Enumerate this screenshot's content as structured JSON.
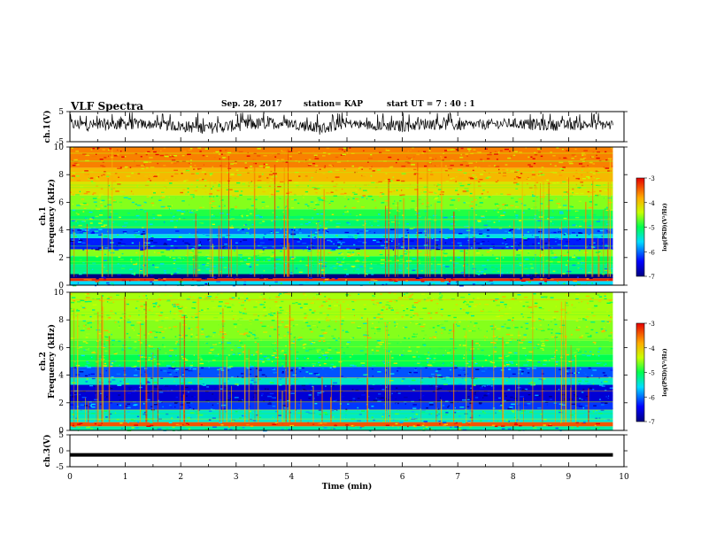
{
  "header": {
    "title": "VLF Spectra",
    "date": "Sep. 28, 2017",
    "station": "station= KAP",
    "start": "start  UT  =   7 : 40 : 1"
  },
  "chart_data": [
    {
      "type": "line",
      "name": "ch1-waveform",
      "ylabel": "ch.1(V)",
      "ylim": [
        -5,
        5
      ],
      "yticks": [
        "5",
        "-5"
      ],
      "xlim": [
        0,
        10
      ],
      "x_extent": 9.8,
      "envelope": [
        {
          "x": 0.0,
          "lo": -1.2,
          "hi": 2.8
        },
        {
          "x": 0.5,
          "lo": -1.5,
          "hi": 2.5
        },
        {
          "x": 1.0,
          "lo": -1.0,
          "hi": 3.0
        },
        {
          "x": 1.5,
          "lo": -0.8,
          "hi": 2.2
        },
        {
          "x": 2.0,
          "lo": -1.8,
          "hi": 2.0
        },
        {
          "x": 2.5,
          "lo": -2.5,
          "hi": 1.6
        },
        {
          "x": 3.0,
          "lo": -1.6,
          "hi": 2.4
        },
        {
          "x": 3.5,
          "lo": -1.0,
          "hi": 3.2
        },
        {
          "x": 4.0,
          "lo": -0.6,
          "hi": 2.8
        },
        {
          "x": 4.5,
          "lo": -2.8,
          "hi": 1.4
        },
        {
          "x": 5.0,
          "lo": -0.5,
          "hi": 2.6
        },
        {
          "x": 5.5,
          "lo": -1.2,
          "hi": 2.0
        },
        {
          "x": 6.0,
          "lo": -1.9,
          "hi": 2.2
        },
        {
          "x": 6.5,
          "lo": -0.9,
          "hi": 3.0
        },
        {
          "x": 7.0,
          "lo": -1.4,
          "hi": 2.1
        },
        {
          "x": 7.5,
          "lo": -1.0,
          "hi": 2.4
        },
        {
          "x": 8.0,
          "lo": -0.6,
          "hi": 2.8
        },
        {
          "x": 8.5,
          "lo": -1.5,
          "hi": 2.6
        },
        {
          "x": 9.0,
          "lo": -1.2,
          "hi": 2.2
        },
        {
          "x": 9.5,
          "lo": -1.0,
          "hi": 2.5
        },
        {
          "x": 9.8,
          "lo": -1.3,
          "hi": 2.3
        }
      ]
    },
    {
      "type": "heatmap",
      "name": "ch1-spectrogram",
      "ylabel": "ch.1\nFrequency (kHz)",
      "ylim": [
        0,
        10
      ],
      "yticks": [
        "0",
        "2",
        "4",
        "6",
        "8",
        "10"
      ],
      "xlim": [
        0,
        10
      ],
      "x_extent": 9.8,
      "colorbar": {
        "label": "log(PSD)(V²/Hz)",
        "range": [
          -7,
          -3
        ],
        "ticks": [
          "-3",
          "-4",
          "-5",
          "-6",
          "-7"
        ]
      },
      "bands": [
        {
          "f0": 0.0,
          "f1": 0.3,
          "level": -5.6
        },
        {
          "f0": 0.3,
          "f1": 0.5,
          "level": -3.2
        },
        {
          "f0": 0.5,
          "f1": 0.8,
          "level": -7.0
        },
        {
          "f0": 0.8,
          "f1": 1.5,
          "level": -5.2
        },
        {
          "f0": 1.5,
          "f1": 2.1,
          "level": -5.0
        },
        {
          "f0": 2.1,
          "f1": 2.6,
          "level": -4.6
        },
        {
          "f0": 2.6,
          "f1": 3.4,
          "level": -6.3
        },
        {
          "f0": 3.4,
          "f1": 3.7,
          "level": -5.5
        },
        {
          "f0": 3.7,
          "f1": 4.1,
          "level": -6.0
        },
        {
          "f0": 4.1,
          "f1": 5.0,
          "level": -5.1
        },
        {
          "f0": 5.0,
          "f1": 5.5,
          "level": -4.9
        },
        {
          "f0": 5.5,
          "f1": 6.5,
          "level": -4.6
        },
        {
          "f0": 6.5,
          "f1": 7.5,
          "level": -4.2
        },
        {
          "f0": 7.5,
          "f1": 8.5,
          "level": -3.9
        },
        {
          "f0": 8.5,
          "f1": 10.0,
          "level": -3.6
        }
      ]
    },
    {
      "type": "heatmap",
      "name": "ch2-spectrogram",
      "ylabel": "ch.2\nFrequency (kHz)",
      "ylim": [
        0,
        10
      ],
      "yticks": [
        "0",
        "2",
        "4",
        "6",
        "8",
        "10"
      ],
      "xlim": [
        0,
        10
      ],
      "x_extent": 9.8,
      "colorbar": {
        "label": "log(PSD)(V²/Hz)",
        "range": [
          -7,
          -3
        ],
        "ticks": [
          "-3",
          "-4",
          "-5",
          "-6",
          "-7"
        ]
      },
      "bands": [
        {
          "f0": 0.0,
          "f1": 0.3,
          "level": -5.3
        },
        {
          "f0": 0.3,
          "f1": 0.6,
          "level": -3.4
        },
        {
          "f0": 0.6,
          "f1": 1.5,
          "level": -5.4
        },
        {
          "f0": 1.5,
          "f1": 2.0,
          "level": -6.2
        },
        {
          "f0": 2.0,
          "f1": 3.3,
          "level": -6.6
        },
        {
          "f0": 3.3,
          "f1": 3.8,
          "level": -5.4
        },
        {
          "f0": 3.8,
          "f1": 4.6,
          "level": -6.1
        },
        {
          "f0": 4.6,
          "f1": 5.5,
          "level": -5.0
        },
        {
          "f0": 5.5,
          "f1": 6.5,
          "level": -4.8
        },
        {
          "f0": 6.5,
          "f1": 8.0,
          "level": -4.6
        },
        {
          "f0": 8.0,
          "f1": 10.0,
          "level": -4.5
        }
      ]
    },
    {
      "type": "line",
      "name": "ch3-waveform",
      "ylabel": "ch.3(V)",
      "ylim": [
        -5,
        5
      ],
      "yticks": [
        "5",
        "0",
        "-5"
      ],
      "xlim": [
        0,
        10
      ],
      "x_extent": 9.8,
      "xlabel": "Time (min)",
      "xticks": [
        "0",
        "1",
        "2",
        "3",
        "4",
        "5",
        "6",
        "7",
        "8",
        "9",
        "10"
      ],
      "level": -1.3
    }
  ]
}
